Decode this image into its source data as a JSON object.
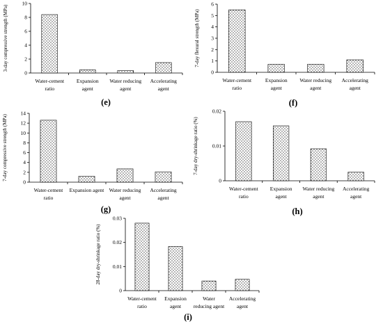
{
  "chart_data": [
    {
      "panel": "(e)",
      "type": "bar",
      "ylabel": "3-day compressive strength (MPa)",
      "ylim": [
        0,
        10
      ],
      "yticks": [
        "0",
        "2",
        "4",
        "6",
        "8",
        "10"
      ],
      "categories": [
        [
          "Water-cement",
          "ratio"
        ],
        [
          "Expansion",
          "agent"
        ],
        [
          "Water reducing",
          "agent"
        ],
        [
          "Accelerating",
          "agent"
        ]
      ],
      "values": [
        8.4,
        0.45,
        0.35,
        1.5
      ]
    },
    {
      "panel": "(f)",
      "type": "bar",
      "ylabel": "7-day flexural strength (MPa)",
      "ylim": [
        0,
        6
      ],
      "yticks": [
        "0",
        "1",
        "2",
        "3",
        "4",
        "5",
        "6"
      ],
      "categories": [
        [
          "Water-cement",
          "ratio"
        ],
        [
          "Expansion",
          "agent"
        ],
        [
          "Water reducing",
          "agent"
        ],
        [
          "Accelerating",
          "agent"
        ]
      ],
      "values": [
        5.5,
        0.7,
        0.7,
        1.1
      ]
    },
    {
      "panel": "(g)",
      "type": "bar",
      "ylabel": "7-day compressive strength (MPa)",
      "ylim": [
        0,
        14
      ],
      "yticks": [
        "0",
        "2",
        "4",
        "6",
        "8",
        "10",
        "12",
        "14"
      ],
      "categories": [
        [
          "Water-cement",
          "ratio"
        ],
        [
          "Expansion agent"
        ],
        [
          "Water reducing",
          "agent"
        ],
        [
          "Accelerating",
          "agent"
        ]
      ],
      "values": [
        12.6,
        1.2,
        2.7,
        2.1
      ]
    },
    {
      "panel": "(h)",
      "type": "bar",
      "ylabel": "7-day dry-shrinkage ratio (%)",
      "ylim": [
        0,
        0.02
      ],
      "yticks": [
        "0",
        "0.01",
        "0.02"
      ],
      "categories": [
        [
          "Water-cement",
          "ratio"
        ],
        [
          "Expansion",
          "agent"
        ],
        [
          "Water reducing",
          "agent"
        ],
        [
          "Accelerating",
          "agent"
        ]
      ],
      "values": [
        0.017,
        0.0158,
        0.0092,
        0.0025
      ]
    },
    {
      "panel": "(i)",
      "type": "bar",
      "ylabel": "28-day dry-shrinkage ratio (%)",
      "ylim": [
        0,
        0.03
      ],
      "yticks": [
        "0",
        "0.01",
        "0.02",
        "0.03"
      ],
      "categories": [
        [
          "Water-cement",
          "ratio"
        ],
        [
          "Expansion",
          "agent"
        ],
        [
          "Water",
          "reducing agent"
        ],
        [
          "Accelerating",
          "agent"
        ]
      ],
      "values": [
        0.028,
        0.0183,
        0.004,
        0.0047
      ]
    }
  ]
}
